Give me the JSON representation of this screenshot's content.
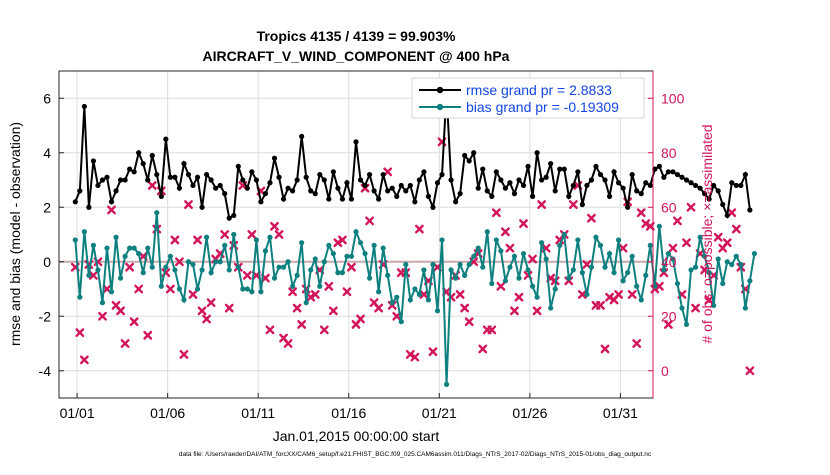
{
  "chart_data": {
    "type": "line",
    "title_line1": "Tropics 4135 / 4139 = 99.903%",
    "title_line2": "AIRCRAFT_V_WIND_COMPONENT @ 400 hPa",
    "xlabel": "Jan.01,2015 00:00:00 start",
    "ylabel_left": "rmse and bias (model - observation)",
    "ylabel_right": "# of obs: o=possible; ×=assimilated",
    "x_tick_labels": [
      "01/01",
      "01/06",
      "01/11",
      "01/16",
      "01/21",
      "01/26",
      "01/31"
    ],
    "x_tick_days": [
      0,
      5,
      10,
      15,
      20,
      25,
      30
    ],
    "xlim": [
      -1,
      31.8
    ],
    "ylim_left": [
      -5,
      7
    ],
    "y_ticks_left": [
      -4,
      -2,
      0,
      2,
      4,
      6
    ],
    "ylim_right": [
      -10,
      110
    ],
    "y_ticks_right": [
      0,
      20,
      40,
      60,
      80,
      100
    ],
    "x_step_days": 0.25,
    "x_start_day": -0.1,
    "grid": true,
    "legend_position": "top-right",
    "colors": {
      "rmse": "#000000",
      "bias": "#0f8080",
      "obs": "#d2155a",
      "right_axis": "#d2155a",
      "legend_text": "#1446e6",
      "zero_line": "#c8a8a8",
      "grid": "#dddddd"
    },
    "series": [
      {
        "name": "rmse grand pr = 2.8833",
        "axis": "left",
        "marker": "circle",
        "values": [
          2.2,
          2.6,
          5.7,
          2.0,
          3.7,
          2.8,
          3.0,
          3.1,
          2.2,
          2.6,
          3.0,
          3.0,
          3.4,
          3.3,
          4.0,
          3.6,
          3.0,
          3.9,
          3.2,
          2.4,
          4.5,
          3.1,
          3.1,
          2.7,
          3.6,
          3.2,
          2.8,
          3.1,
          2.0,
          3.2,
          3.0,
          2.7,
          2.8,
          2.5,
          1.6,
          1.7,
          3.5,
          3.0,
          2.7,
          3.3,
          3.0,
          2.2,
          2.5,
          2.9,
          3.8,
          3.1,
          2.3,
          2.7,
          2.6,
          3.0,
          4.6,
          3.1,
          2.6,
          2.5,
          3.2,
          3.0,
          2.3,
          3.3,
          2.7,
          2.3,
          2.9,
          2.3,
          4.4,
          3.0,
          2.8,
          3.2,
          2.6,
          2.3,
          3.2,
          2.6,
          2.7,
          2.4,
          2.8,
          2.6,
          2.8,
          2.2,
          3.0,
          3.3,
          2.4,
          2.0,
          2.9,
          3.2,
          6.2,
          3.0,
          2.2,
          2.5,
          3.9,
          3.7,
          4.0,
          2.7,
          3.4,
          2.6,
          2.4,
          3.3,
          3.0,
          2.7,
          2.9,
          2.5,
          3.0,
          2.8,
          3.5,
          2.4,
          4.0,
          3.0,
          3.1,
          3.6,
          2.6,
          3.4,
          3.4,
          2.4,
          2.8,
          3.3,
          2.1,
          2.8,
          3.0,
          3.5,
          3.2,
          3.0,
          2.4,
          3.3,
          2.9,
          2.7,
          2.0,
          3.2,
          2.6,
          2.5,
          2.9,
          2.8,
          3.4,
          3.5,
          3.1,
          3.3,
          3.3,
          3.2,
          3.1,
          3.0,
          2.9,
          2.8,
          2.7,
          2.5,
          2.3,
          2.8,
          2.6,
          2.1,
          1.7,
          2.9,
          2.8,
          2.8,
          3.2,
          1.9
        ]
      },
      {
        "name": "bias grand pr = -0.19309",
        "axis": "left",
        "marker": "circle",
        "values": [
          0.8,
          -1.3,
          1.1,
          -0.5,
          0.6,
          -0.3,
          -1.5,
          0.5,
          -1.1,
          0.9,
          -0.6,
          0.2,
          0.5,
          0.5,
          0.3,
          -0.4,
          0.5,
          -0.2,
          1.8,
          -0.9,
          -0.2,
          0.2,
          -0.3,
          -1.0,
          -1.4,
          0.0,
          -0.1,
          -1.0,
          -0.3,
          0.9,
          -0.4,
          0.0,
          0.0,
          0.6,
          -0.3,
          1.0,
          -0.2,
          -1.0,
          -1.0,
          -1.1,
          0.8,
          -1.1,
          0.4,
          0.9,
          -0.6,
          -0.2,
          -0.2,
          0.0,
          -0.9,
          -0.5,
          0.7,
          -1.5,
          -0.3,
          0.1,
          -0.9,
          0.0,
          0.6,
          0.3,
          -0.4,
          -0.4,
          0.2,
          0.2,
          1.1,
          0.7,
          0.3,
          -0.6,
          0.6,
          -1.1,
          0.5,
          -0.5,
          -1.5,
          -1.3,
          -2.2,
          -0.1,
          -1.4,
          -1.0,
          -1.2,
          -0.3,
          -1.4,
          -0.1,
          -1.8,
          0.8,
          -4.5,
          -0.3,
          -0.6,
          -0.1,
          -0.5,
          -0.1,
          0.2,
          0.5,
          -0.2,
          1.1,
          -0.8,
          0.8,
          0.4,
          -0.7,
          -0.2,
          0.2,
          -0.6,
          0.3,
          -0.3,
          -0.9,
          -1.3,
          0.7,
          0.1,
          -1.7,
          -1.0,
          0.6,
          1.0,
          -0.6,
          -0.3,
          0.8,
          -0.4,
          -1.2,
          -0.2,
          0.9,
          0.6,
          -0.2,
          0.3,
          -0.4,
          0.8,
          -0.7,
          -0.4,
          0.2,
          -0.9,
          -1.4,
          -0.5,
          0.6,
          -0.9,
          1.3,
          -0.3,
          0.3,
          0.1,
          -0.8,
          -1.7,
          -2.3,
          -0.3,
          -0.2,
          0.9,
          0.2,
          -0.4,
          -1.6,
          0.1,
          -0.8,
          0.0,
          -0.1,
          0.2,
          -0.1,
          -1.7,
          -0.7,
          0.3
        ]
      },
      {
        "name": "obs count",
        "axis": "right",
        "marker": "x",
        "values": [
          38,
          14,
          4,
          39,
          35,
          40,
          20,
          30,
          59,
          24,
          22,
          10,
          38,
          18,
          30,
          42,
          13,
          68,
          52,
          66,
          36,
          30,
          48,
          40,
          6,
          61,
          28,
          48,
          22,
          19,
          25,
          41,
          43,
          50,
          23,
          46,
          38,
          68,
          35,
          50,
          35,
          66,
          34,
          15,
          53,
          50,
          12,
          10,
          29,
          23,
          17,
          30,
          27,
          28,
          37,
          15,
          31,
          22,
          47,
          48,
          29,
          38,
          17,
          19,
          67,
          55,
          25,
          23,
          39,
          73,
          24,
          20,
          36,
          36,
          6,
          5,
          52,
          28,
          33,
          7,
          38,
          84,
          29,
          27,
          35,
          28,
          23,
          18,
          40,
          43,
          8,
          15,
          15,
          58,
          31,
          51,
          45,
          22,
          27,
          54,
          35,
          41,
          22,
          61,
          45,
          34,
          33,
          48,
          50,
          33,
          61,
          68,
          28,
          39,
          56,
          24,
          24,
          8,
          27,
          26,
          28,
          45,
          62,
          28,
          10,
          58,
          54,
          53,
          30,
          31,
          36,
          17,
          45,
          55,
          28,
          47,
          60,
          23,
          43,
          37,
          26,
          35,
          49,
          45,
          47,
          58,
          52,
          38,
          30,
          0
        ]
      }
    ]
  },
  "footer": {
    "data_file": "data file: /Users/raeder/DAI/ATM_forcXX/CAM6_setup/f.e21.FHIST_BGC.f09_025.CAM6assim.011/Diags_NTrS_2017-02/Diags_NTrS_2015-01/obs_diag_output.nc"
  }
}
